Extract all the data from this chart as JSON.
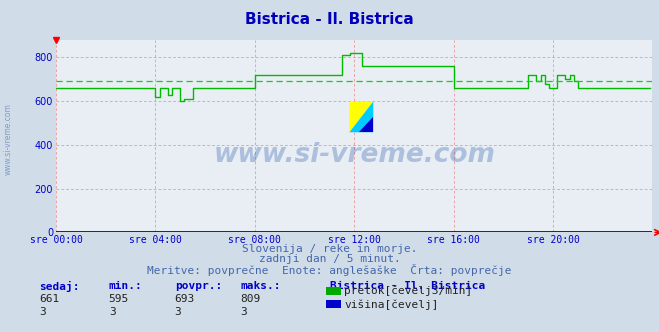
{
  "title": "Bistrica - Il. Bistrica",
  "title_color": "#0000bb",
  "title_fontsize": 11,
  "bg_color": "#d0dce8",
  "plot_bg_color": "#e8eef4",
  "xlabel_ticks": [
    "sre 00:00",
    "sre 04:00",
    "sre 08:00",
    "sre 12:00",
    "sre 16:00",
    "sre 20:00"
  ],
  "xlabel_tick_positions": [
    0,
    4,
    8,
    12,
    16,
    20
  ],
  "ylabel_ticks": [
    0,
    200,
    400,
    600,
    800
  ],
  "ylim": [
    0,
    880
  ],
  "xlim": [
    0,
    24
  ],
  "avg_value": 693,
  "avg_color": "#00dd00",
  "line_color": "#00bb00",
  "grid_color": "#ee8888",
  "x_axis_color": "#0000cc",
  "subtitle1": "Slovenija / reke in morje.",
  "subtitle2": "zadnji dan / 5 minut.",
  "subtitle3": "Meritve: povprečne  Enote: anglešaške  Črta: povprečje",
  "subtitle_color": "#4466aa",
  "subtitle_fontsize": 8,
  "watermark_text": "www.si-vreme.com",
  "watermark_color": "#2255aa",
  "watermark_alpha": 0.3,
  "legend_title": "Bistrica - Il. Bistrica",
  "legend_items": [
    "pretok[čevelj3/min]",
    "višina[čevelj]"
  ],
  "legend_colors": [
    "#00aa00",
    "#0000cc"
  ],
  "stats_labels": [
    "sedaj:",
    "min.:",
    "povpr.:",
    "maks.:"
  ],
  "stats_pretok": [
    661,
    595,
    693,
    809
  ],
  "stats_visina": [
    3,
    3,
    3,
    3
  ],
  "stats_color": "#0000cc",
  "stats_fontsize": 8,
  "data_segments": [
    {
      "x_start": 0.0,
      "x_end": 4.0,
      "y": 660
    },
    {
      "x_start": 4.0,
      "x_end": 4.17,
      "y": 620
    },
    {
      "x_start": 4.17,
      "x_end": 4.5,
      "y": 660
    },
    {
      "x_start": 4.5,
      "x_end": 4.67,
      "y": 630
    },
    {
      "x_start": 4.67,
      "x_end": 5.0,
      "y": 660
    },
    {
      "x_start": 5.0,
      "x_end": 5.17,
      "y": 600
    },
    {
      "x_start": 5.17,
      "x_end": 5.5,
      "y": 610
    },
    {
      "x_start": 5.5,
      "x_end": 8.0,
      "y": 660
    },
    {
      "x_start": 8.0,
      "x_end": 11.5,
      "y": 720
    },
    {
      "x_start": 11.5,
      "x_end": 11.83,
      "y": 809
    },
    {
      "x_start": 11.83,
      "x_end": 12.33,
      "y": 820
    },
    {
      "x_start": 12.33,
      "x_end": 13.5,
      "y": 760
    },
    {
      "x_start": 13.5,
      "x_end": 16.0,
      "y": 760
    },
    {
      "x_start": 16.0,
      "x_end": 19.0,
      "y": 660
    },
    {
      "x_start": 19.0,
      "x_end": 19.33,
      "y": 720
    },
    {
      "x_start": 19.33,
      "x_end": 19.5,
      "y": 690
    },
    {
      "x_start": 19.5,
      "x_end": 19.67,
      "y": 720
    },
    {
      "x_start": 19.67,
      "x_end": 19.83,
      "y": 680
    },
    {
      "x_start": 19.83,
      "x_end": 20.17,
      "y": 660
    },
    {
      "x_start": 20.17,
      "x_end": 20.5,
      "y": 720
    },
    {
      "x_start": 20.5,
      "x_end": 20.67,
      "y": 700
    },
    {
      "x_start": 20.67,
      "x_end": 20.83,
      "y": 720
    },
    {
      "x_start": 20.83,
      "x_end": 21.0,
      "y": 690
    },
    {
      "x_start": 21.0,
      "x_end": 23.917,
      "y": 660
    }
  ]
}
